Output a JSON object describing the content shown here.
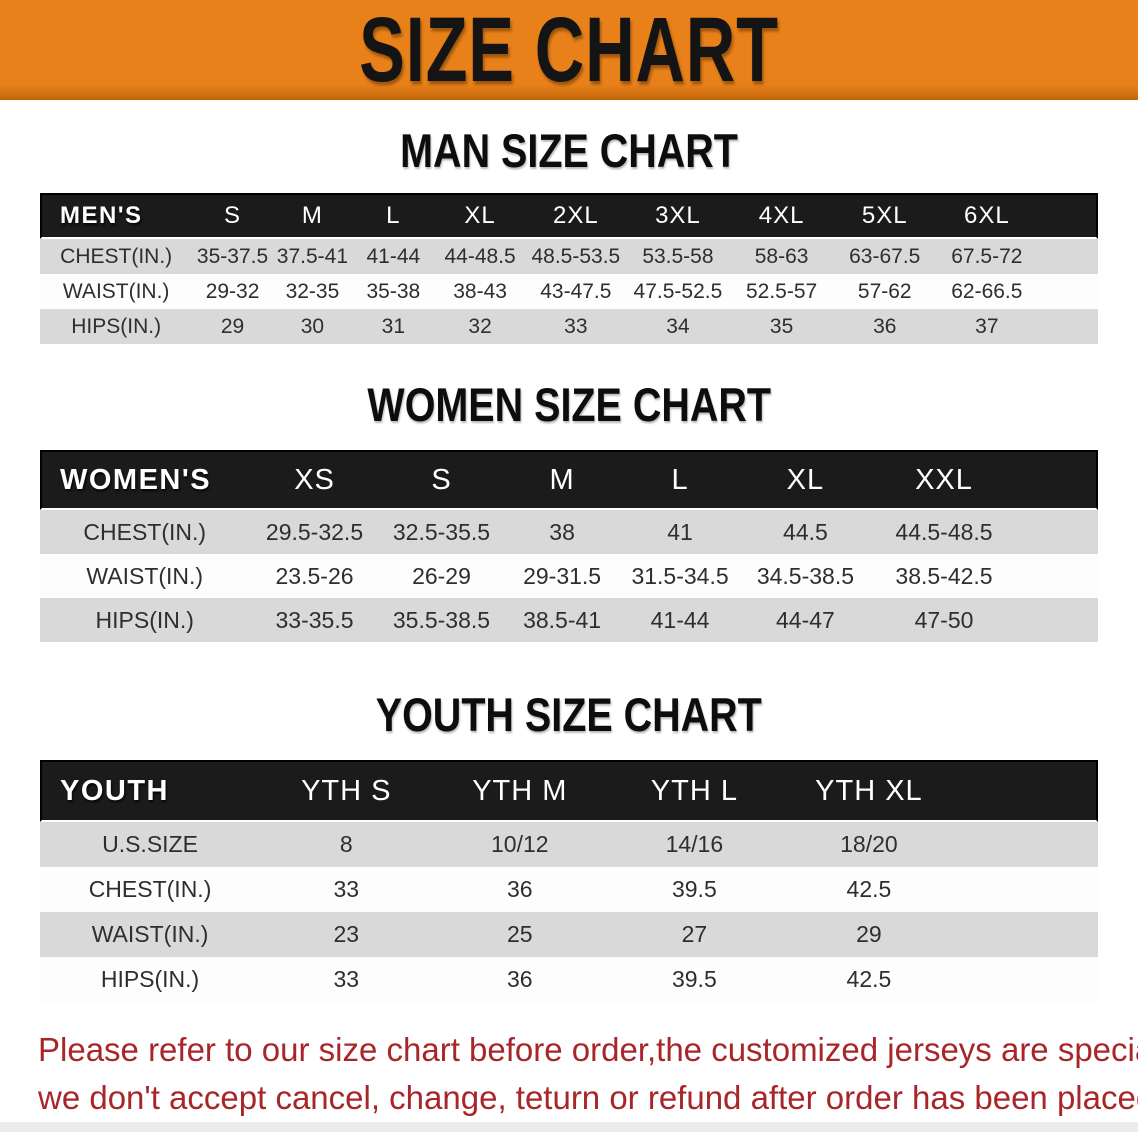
{
  "banner": {
    "title": "SIZE CHART"
  },
  "sections": [
    {
      "heading": "MAN SIZE CHART",
      "group_label": "MEN'S",
      "columns": [
        "S",
        "M",
        "L",
        "XL",
        "2XL",
        "3XL",
        "4XL",
        "5XL",
        "6XL"
      ],
      "rows": [
        {
          "label": "CHEST(IN.)",
          "values": [
            "35-37.5",
            "37.5-41",
            "41-44",
            "44-48.5",
            "48.5-53.5",
            "53.5-58",
            "58-63",
            "63-67.5",
            "67.5-72"
          ]
        },
        {
          "label": "WAIST(IN.)",
          "values": [
            "29-32",
            "32-35",
            "35-38",
            "38-43",
            "43-47.5",
            "47.5-52.5",
            "52.5-57",
            "57-62",
            "62-66.5"
          ]
        },
        {
          "label": "HIPS(IN.)",
          "values": [
            "29",
            "30",
            "31",
            "32",
            "33",
            "34",
            "35",
            "36",
            "37"
          ]
        }
      ]
    },
    {
      "heading": "WOMEN SIZE CHART",
      "group_label": "WOMEN'S",
      "columns": [
        "XS",
        "S",
        "M",
        "L",
        "XL",
        "XXL"
      ],
      "rows": [
        {
          "label": "CHEST(IN.)",
          "values": [
            "29.5-32.5",
            "32.5-35.5",
            "38",
            "41",
            "44.5",
            "44.5-48.5"
          ]
        },
        {
          "label": "WAIST(IN.)",
          "values": [
            "23.5-26",
            "26-29",
            "29-31.5",
            "31.5-34.5",
            "34.5-38.5",
            "38.5-42.5"
          ]
        },
        {
          "label": "HIPS(IN.)",
          "values": [
            "33-35.5",
            "35.5-38.5",
            "38.5-41",
            "41-44",
            "44-47",
            "47-50"
          ]
        }
      ]
    },
    {
      "heading": "YOUTH SIZE CHART",
      "group_label": "YOUTH",
      "columns": [
        "YTH S",
        "YTH M",
        "YTH L",
        "YTH XL"
      ],
      "rows": [
        {
          "label": "U.S.SIZE",
          "values": [
            "8",
            "10/12",
            "14/16",
            "18/20"
          ]
        },
        {
          "label": "CHEST(IN.)",
          "values": [
            "33",
            "36",
            "39.5",
            "42.5"
          ]
        },
        {
          "label": "WAIST(IN.)",
          "values": [
            "23",
            "25",
            "27",
            "29"
          ]
        },
        {
          "label": "HIPS(IN.)",
          "values": [
            "33",
            "36",
            "39.5",
            "42.5"
          ]
        }
      ]
    }
  ],
  "disclaimer": {
    "line1": "Please refer to our size chart before order,the customized jerseys are special products,",
    "line2": "we don't accept cancel, change, teturn or refund after order has been placed!"
  },
  "colors": {
    "banner_bg": "#E8811A",
    "banner_text": "#141414",
    "header_bg": "#1B1B1B",
    "header_text": "#FFFFFF",
    "row_shade": "#D9D9D9",
    "row_plain": "#FDFDFD",
    "disclaimer_red": "#A8262A"
  }
}
